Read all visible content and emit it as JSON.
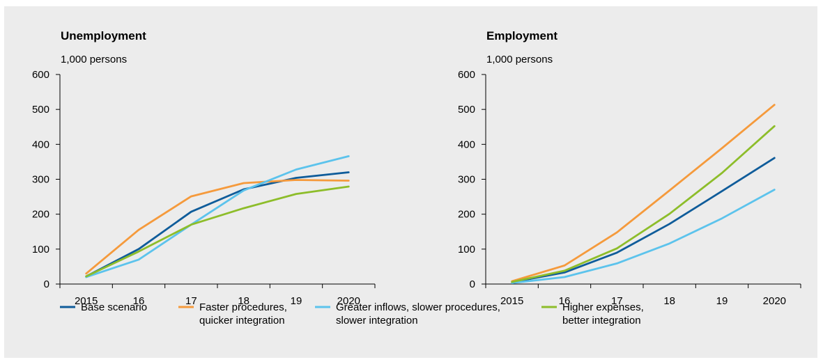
{
  "chart_data": [
    {
      "type": "line",
      "title": "Unemployment",
      "ylabel": "1,000 persons",
      "categories": [
        "2015",
        "16",
        "17",
        "18",
        "19",
        "2020"
      ],
      "ylim": [
        0,
        600
      ],
      "yticks": [
        0,
        100,
        200,
        300,
        400,
        500,
        600
      ],
      "grid": false,
      "series": [
        {
          "name": "Base scenario",
          "color": "#0f5c9a",
          "values": [
            22,
            100,
            207,
            271,
            304,
            320
          ]
        },
        {
          "name": "Faster procedures, quicker integration",
          "color": "#f59a3c",
          "values": [
            30,
            155,
            251,
            289,
            298,
            296
          ]
        },
        {
          "name": "Greater inflows, slower procedures, slower integration",
          "color": "#5cc3ec",
          "values": [
            20,
            70,
            170,
            268,
            328,
            366
          ]
        },
        {
          "name": "Higher expenses, better integration",
          "color": "#8dbd2a",
          "values": [
            22,
            93,
            170,
            217,
            258,
            279
          ]
        }
      ]
    },
    {
      "type": "line",
      "title": "Employment",
      "ylabel": "1,000 persons",
      "categories": [
        "2015",
        "16",
        "17",
        "18",
        "19",
        "2020"
      ],
      "ylim": [
        0,
        600
      ],
      "yticks": [
        0,
        100,
        200,
        300,
        400,
        500,
        600
      ],
      "grid": false,
      "series": [
        {
          "name": "Base scenario",
          "color": "#0f5c9a",
          "values": [
            5,
            33,
            90,
            172,
            266,
            361
          ]
        },
        {
          "name": "Faster procedures, quicker integration",
          "color": "#f59a3c",
          "values": [
            8,
            53,
            148,
            268,
            389,
            513
          ]
        },
        {
          "name": "Greater inflows, slower procedures, slower integration",
          "color": "#5cc3ec",
          "values": [
            3,
            20,
            59,
            116,
            188,
            270
          ]
        },
        {
          "name": "Higher expenses, better integration",
          "color": "#8dbd2a",
          "values": [
            6,
            38,
            102,
            201,
            318,
            452
          ]
        }
      ]
    }
  ],
  "legend": {
    "placement": "bottom",
    "items": [
      {
        "lines": [
          "Base scenario"
        ],
        "color": "#0f5c9a"
      },
      {
        "lines": [
          "Faster procedures,",
          "quicker integration"
        ],
        "color": "#f59a3c"
      },
      {
        "lines": [
          "Greater inflows, slower procedures,",
          "slower integration"
        ],
        "color": "#5cc3ec"
      },
      {
        "lines": [
          "Higher expenses,",
          "better integration"
        ],
        "color": "#8dbd2a"
      }
    ]
  }
}
